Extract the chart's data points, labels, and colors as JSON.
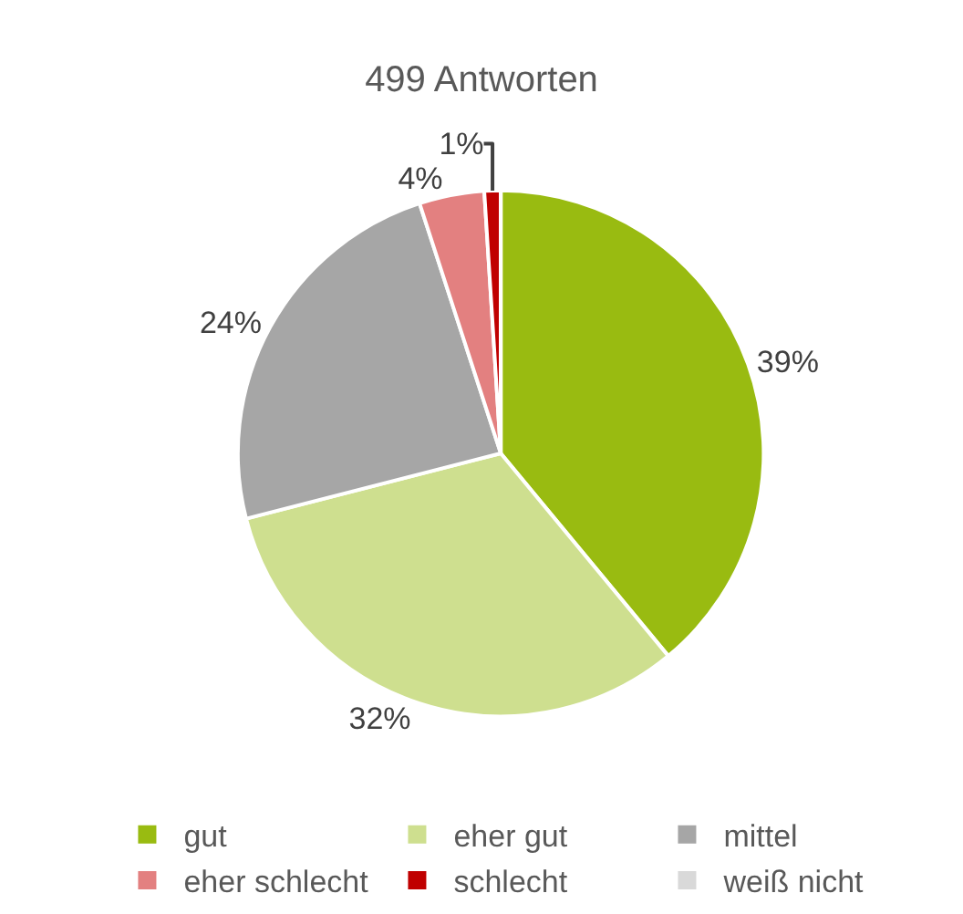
{
  "chart_data": {
    "type": "pie",
    "title": "499 Antworten",
    "categories": [
      "gut",
      "eher gut",
      "mittel",
      "eher schlecht",
      "schlecht",
      "weiß nicht"
    ],
    "values": [
      39,
      32,
      24,
      4,
      1,
      0
    ],
    "colors": [
      "#99bb11",
      "#cedf8f",
      "#a6a6a6",
      "#e38080",
      "#c00000",
      "#d9d9d9"
    ],
    "value_labels": [
      "39%",
      "32%",
      "24%",
      "4%",
      "1%",
      null
    ],
    "legend": "bottom"
  }
}
